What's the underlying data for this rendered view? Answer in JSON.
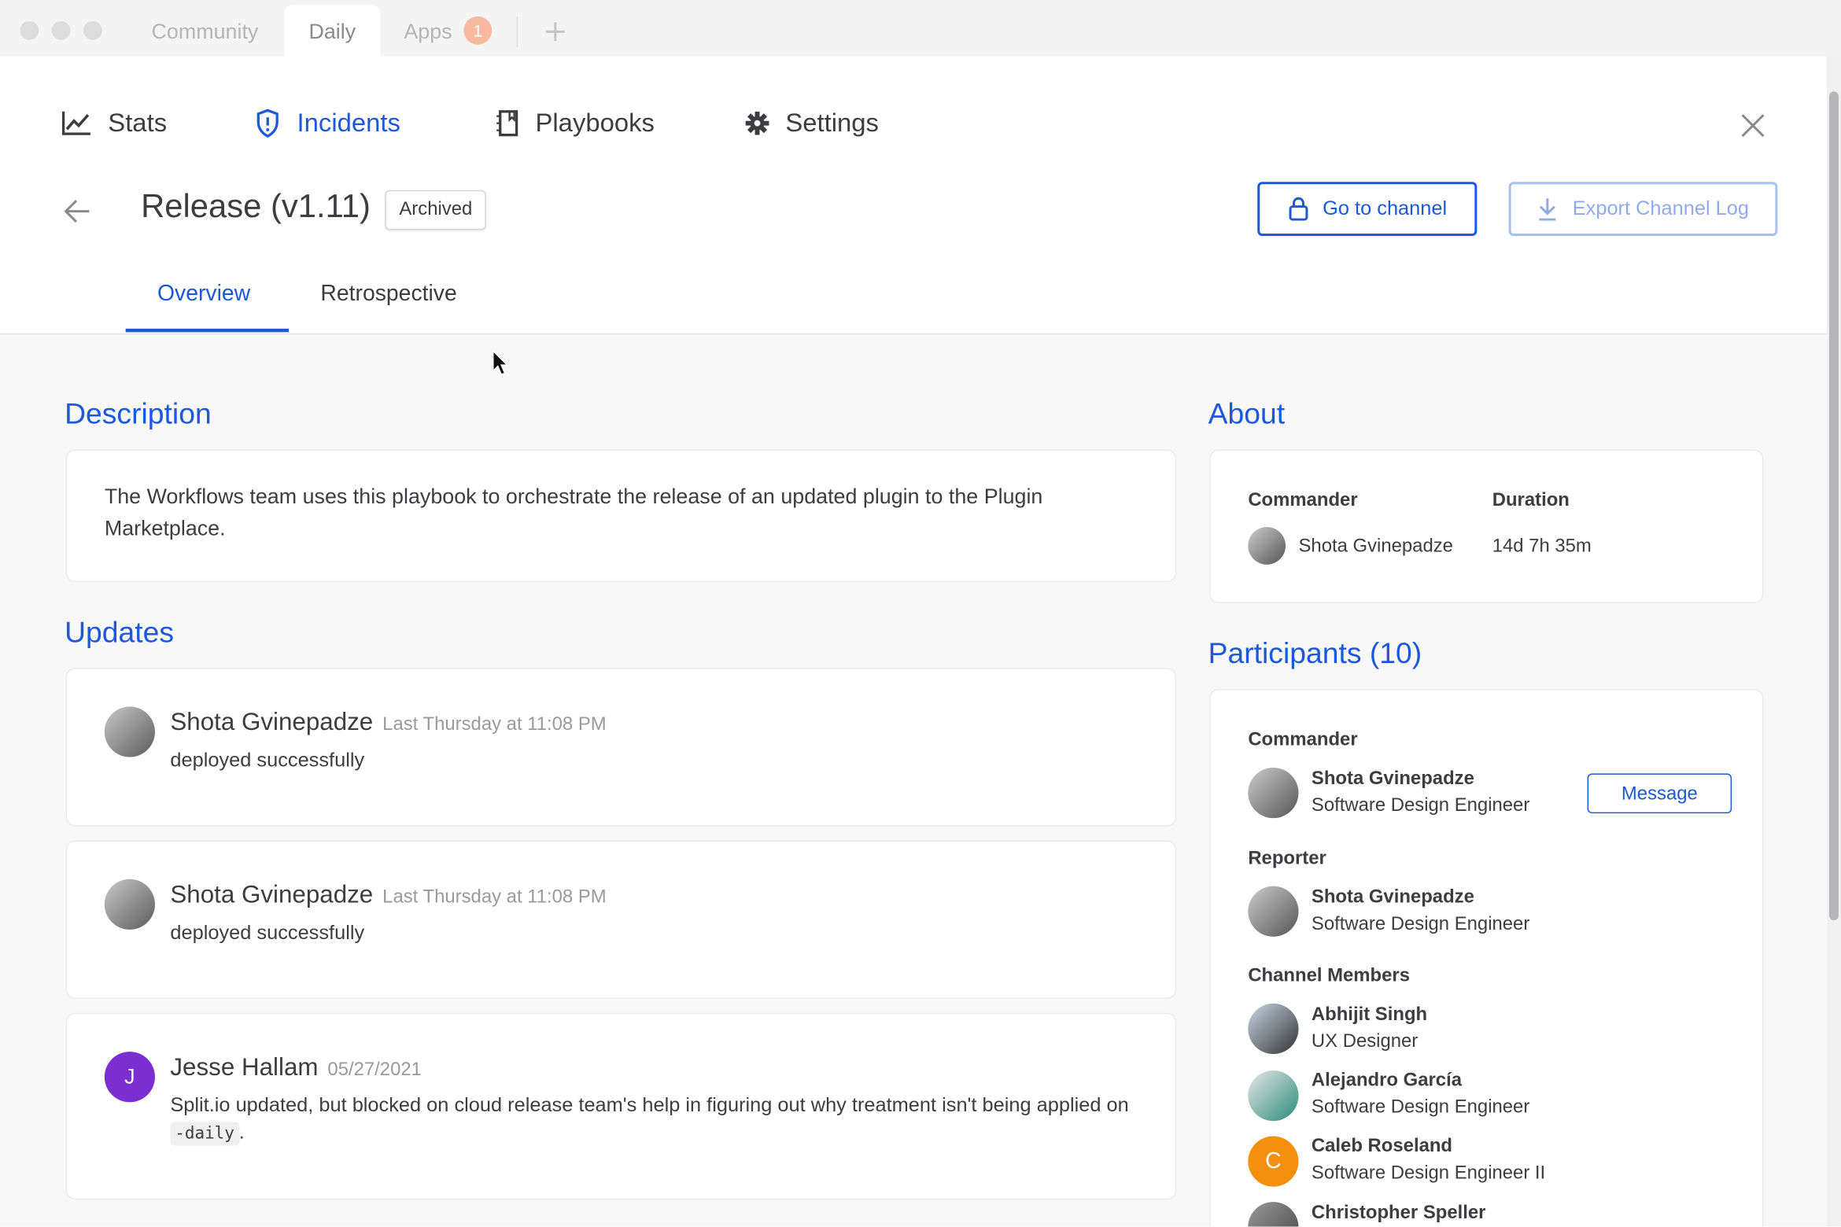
{
  "window_tabs": [
    {
      "label": "Community",
      "active": false
    },
    {
      "label": "Daily",
      "active": true
    },
    {
      "label": "Apps",
      "active": false,
      "badge": "1"
    }
  ],
  "new_tab_icon": "plus-icon",
  "nav": [
    {
      "label": "Stats",
      "icon": "line-chart-icon",
      "active": false
    },
    {
      "label": "Incidents",
      "icon": "shield-alert-icon",
      "active": true
    },
    {
      "label": "Playbooks",
      "icon": "notebook-icon",
      "active": false
    },
    {
      "label": "Settings",
      "icon": "gear-icon",
      "active": false
    }
  ],
  "incident": {
    "title": "Release (v1.11)",
    "status": "Archived",
    "go_to_channel": "Go to channel",
    "export_log": "Export Channel Log"
  },
  "subtabs": [
    {
      "label": "Overview",
      "active": true
    },
    {
      "label": "Retrospective",
      "active": false
    }
  ],
  "description": {
    "heading": "Description",
    "text": "The Workflows team uses this playbook to orchestrate the release of an updated plugin to the Plugin Marketplace."
  },
  "updates": {
    "heading": "Updates",
    "items": [
      {
        "author": "Shota Gvinepadze",
        "time": "Last Thursday at 11:08 PM",
        "text": "deployed successfully"
      },
      {
        "author": "Shota Gvinepadze",
        "time": "Last Thursday at 11:08 PM",
        "text": "deployed successfully"
      },
      {
        "author": "Jesse Hallam",
        "time": "05/27/2021",
        "text_before": "Split.io updated, but blocked on cloud release team's help in figuring out why treatment isn't being applied on ",
        "code": "-daily",
        "text_after": ".",
        "initial": "J",
        "avatar_color": "#7b2fd0"
      }
    ]
  },
  "about": {
    "heading": "About",
    "commander_label": "Commander",
    "commander": "Shota Gvinepadze",
    "duration_label": "Duration",
    "duration": "14d 7h 35m"
  },
  "participants": {
    "heading": "Participants (10)",
    "commander_label": "Commander",
    "commander": {
      "name": "Shota Gvinepadze",
      "role": "Software Design Engineer"
    },
    "message_button": "Message",
    "reporter_label": "Reporter",
    "reporter": {
      "name": "Shota Gvinepadze",
      "role": "Software Design Engineer"
    },
    "members_label": "Channel Members",
    "members": [
      {
        "name": "Abhijit Singh",
        "role": "UX Designer"
      },
      {
        "name": "Alejandro García",
        "role": "Software Design Engineer"
      },
      {
        "name": "Caleb Roseland",
        "role": "Software Design Engineer II",
        "initial": "C",
        "avatar_color": "#f5900e"
      },
      {
        "name": "Christopher Speller",
        "role": ""
      }
    ]
  },
  "colors": {
    "accent": "#1c58d9",
    "text": "#3d3c40",
    "badge": "#f7b9a0"
  }
}
